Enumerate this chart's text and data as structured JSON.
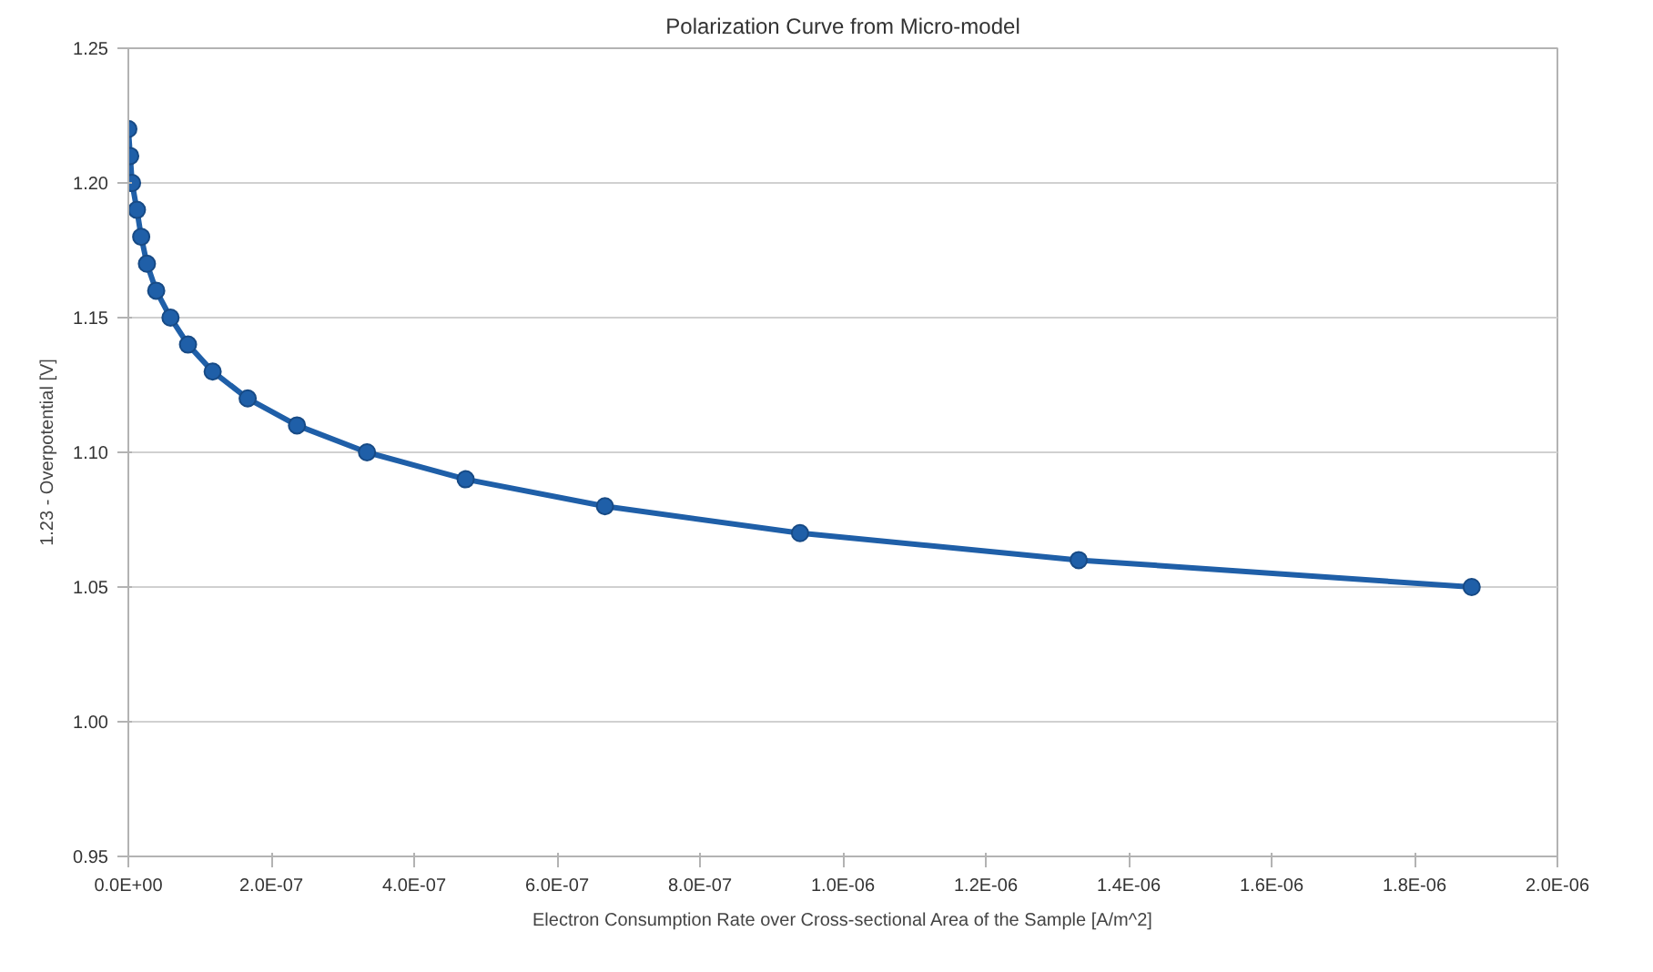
{
  "chart_data": {
    "type": "line",
    "title": "Polarization Curve from Micro-model",
    "xlabel": "Electron Consumption Rate over Cross-sectional Area of the Sample [A/m^2]",
    "ylabel": "1.23 - Overpotential [V]",
    "x": [
      0,
      2.6e-09,
      5.2e-09,
      1.2e-08,
      1.8e-08,
      2.6e-08,
      3.9e-08,
      5.9e-08,
      8.35e-08,
      1.18e-07,
      1.67e-07,
      2.36e-07,
      3.34e-07,
      4.72e-07,
      6.67e-07,
      9.4e-07,
      1.33e-06,
      1.88e-06
    ],
    "series": [
      {
        "color": "#1f5fa8",
        "values": [
          1.22,
          1.21,
          1.2,
          1.19,
          1.18,
          1.17,
          1.16,
          1.15,
          1.14,
          1.13,
          1.12,
          1.11,
          1.1,
          1.09,
          1.08,
          1.07,
          1.06,
          1.05
        ]
      }
    ],
    "xlim": [
      0,
      2e-06
    ],
    "ylim": [
      0.95,
      1.25
    ],
    "xticks": [
      {
        "value": 0,
        "label": "0.0E+00"
      },
      {
        "value": 2e-07,
        "label": "2.0E-07"
      },
      {
        "value": 4e-07,
        "label": "4.0E-07"
      },
      {
        "value": 6e-07,
        "label": "6.0E-07"
      },
      {
        "value": 8e-07,
        "label": "8.0E-07"
      },
      {
        "value": 1e-06,
        "label": "1.0E-06"
      },
      {
        "value": 1.2e-06,
        "label": "1.2E-06"
      },
      {
        "value": 1.4e-06,
        "label": "1.4E-06"
      },
      {
        "value": 1.6e-06,
        "label": "1.6E-06"
      },
      {
        "value": 1.8e-06,
        "label": "1.8E-06"
      },
      {
        "value": 2e-06,
        "label": "2.0E-06"
      }
    ],
    "yticks": [
      {
        "value": 0.95,
        "label": "0.95"
      },
      {
        "value": 1.0,
        "label": "1.00"
      },
      {
        "value": 1.05,
        "label": "1.05"
      },
      {
        "value": 1.1,
        "label": "1.10"
      },
      {
        "value": 1.15,
        "label": "1.15"
      },
      {
        "value": 1.2,
        "label": "1.20"
      },
      {
        "value": 1.25,
        "label": "1.25"
      }
    ],
    "grid": "y",
    "marker": "circle",
    "line_style": "solid"
  }
}
